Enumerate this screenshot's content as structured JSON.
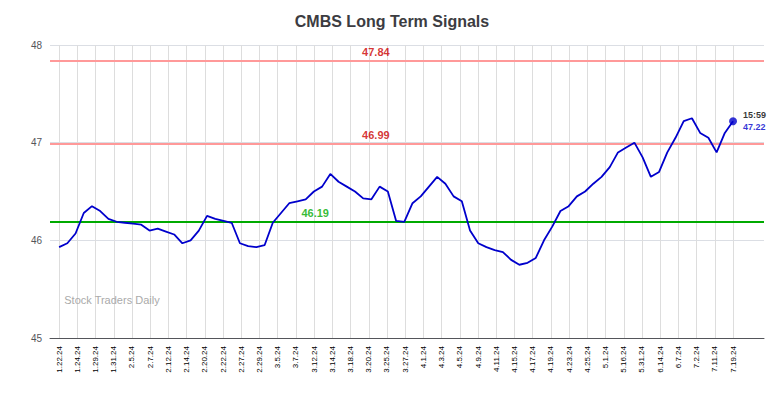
{
  "chart_data": {
    "type": "line",
    "title": "CMBS Long Term Signals",
    "watermark": "Stock Traders Daily",
    "color": "#0000cc",
    "x": [
      0,
      0.4512,
      0.9024,
      1.3537,
      1.8049,
      2.2561,
      2.7073,
      3.1585,
      3.6098,
      4.061,
      4.5122,
      4.9634,
      5.4146,
      5.8659,
      6.3171,
      6.7683,
      7.2195,
      7.6707,
      8.122,
      8.5732,
      9.0244,
      9.4756,
      9.9268,
      10.378,
      10.8293,
      11.2805,
      11.7317,
      12.1829,
      12.6341,
      13.0854,
      13.5366,
      13.9878,
      14.439,
      14.8902,
      15.3415,
      15.7927,
      16.2439,
      16.6951,
      17.1463,
      17.5976,
      18.0488,
      18.5,
      18.9512,
      19.4024,
      19.8537,
      20.3049,
      20.7561,
      21.2073,
      21.6585,
      22.1098,
      22.561,
      23.0122,
      23.4634,
      23.9146,
      24.3659,
      24.8171,
      25.2683,
      25.7195,
      26.1707,
      26.622,
      27.0732,
      27.5244,
      27.9756,
      28.4268,
      28.878,
      29.3293,
      29.7805,
      30.2317,
      30.6829,
      31.1341,
      31.5854,
      32.0366,
      32.4878,
      32.939,
      33.3902,
      33.8415,
      34.2927,
      34.7439,
      35.1951,
      35.6463,
      36.0976,
      36.5488,
      37
    ],
    "values": [
      45.93,
      45.97,
      46.07,
      46.28,
      46.35,
      46.3,
      46.22,
      46.19,
      46.18,
      46.17,
      46.16,
      46.1,
      46.12,
      46.09,
      46.06,
      45.97,
      46.0,
      46.1,
      46.25,
      46.22,
      46.2,
      46.18,
      45.97,
      45.94,
      45.93,
      45.95,
      46.18,
      46.28,
      46.38,
      46.4,
      46.42,
      46.5,
      46.55,
      46.68,
      46.6,
      46.55,
      46.5,
      46.43,
      46.42,
      46.55,
      46.5,
      46.2,
      46.19,
      46.38,
      46.45,
      46.55,
      46.65,
      46.58,
      46.45,
      46.4,
      46.1,
      45.97,
      45.93,
      45.9,
      45.88,
      45.8,
      45.75,
      45.77,
      45.82,
      46.0,
      46.14,
      46.3,
      46.35,
      46.45,
      46.5,
      46.58,
      46.65,
      46.75,
      46.9,
      46.95,
      47.0,
      46.85,
      46.65,
      46.7,
      46.9,
      47.05,
      47.22,
      47.25,
      47.1,
      47.05,
      46.9,
      47.1,
      47.22
    ],
    "xlim": [
      -0.5,
      38.7
    ],
    "xticks": [
      {
        "value": 0,
        "label": "1.22.24"
      },
      {
        "value": 1,
        "label": "1.24.24"
      },
      {
        "value": 2,
        "label": "1.29.24"
      },
      {
        "value": 3,
        "label": "1.31.24"
      },
      {
        "value": 4,
        "label": "2.5.24"
      },
      {
        "value": 5,
        "label": "2.7.24"
      },
      {
        "value": 6,
        "label": "2.12.24"
      },
      {
        "value": 7,
        "label": "2.14.24"
      },
      {
        "value": 8,
        "label": "2.20.24"
      },
      {
        "value": 9,
        "label": "2.22.24"
      },
      {
        "value": 10,
        "label": "2.27.24"
      },
      {
        "value": 11,
        "label": "2.29.24"
      },
      {
        "value": 12,
        "label": "3.5.24"
      },
      {
        "value": 13,
        "label": "3.7.24"
      },
      {
        "value": 14,
        "label": "3.12.24"
      },
      {
        "value": 15,
        "label": "3.14.24"
      },
      {
        "value": 16,
        "label": "3.18.24"
      },
      {
        "value": 17,
        "label": "3.20.24"
      },
      {
        "value": 18,
        "label": "3.25.24"
      },
      {
        "value": 19,
        "label": "3.27.24"
      },
      {
        "value": 20,
        "label": "4.1.24"
      },
      {
        "value": 21,
        "label": "4.3.24"
      },
      {
        "value": 22,
        "label": "4.5.24"
      },
      {
        "value": 23,
        "label": "4.9.24"
      },
      {
        "value": 24,
        "label": "4.11.24"
      },
      {
        "value": 25,
        "label": "4.15.24"
      },
      {
        "value": 26,
        "label": "4.17.24"
      },
      {
        "value": 27,
        "label": "4.19.24"
      },
      {
        "value": 28,
        "label": "4.23.24"
      },
      {
        "value": 29,
        "label": "4.25.24"
      },
      {
        "value": 30,
        "label": "5.1.24"
      },
      {
        "value": 31,
        "label": "5.16.24"
      },
      {
        "value": 32,
        "label": "5.31.24"
      },
      {
        "value": 33,
        "label": "6.14.24"
      },
      {
        "value": 34,
        "label": "6.7.24"
      },
      {
        "value": 35,
        "label": "7.2.24"
      },
      {
        "value": 36,
        "label": "7.11.24"
      },
      {
        "value": 37,
        "label": "7.19.24"
      }
    ],
    "ylim": [
      45.0,
      48.0
    ],
    "yticks": [
      45,
      46,
      47,
      48
    ],
    "grid": true,
    "hlines": [
      {
        "y": 47.84,
        "color": "#ff9999",
        "label_color": "#cc0000"
      },
      {
        "y": 46.99,
        "color": "#ff9999",
        "label_color": "#cc0000"
      },
      {
        "y": 46.19,
        "color": "#00aa00",
        "label_color": "#00aa00"
      }
    ],
    "last_point": {
      "x": 37,
      "y": 47.22,
      "time": "15:59"
    }
  }
}
